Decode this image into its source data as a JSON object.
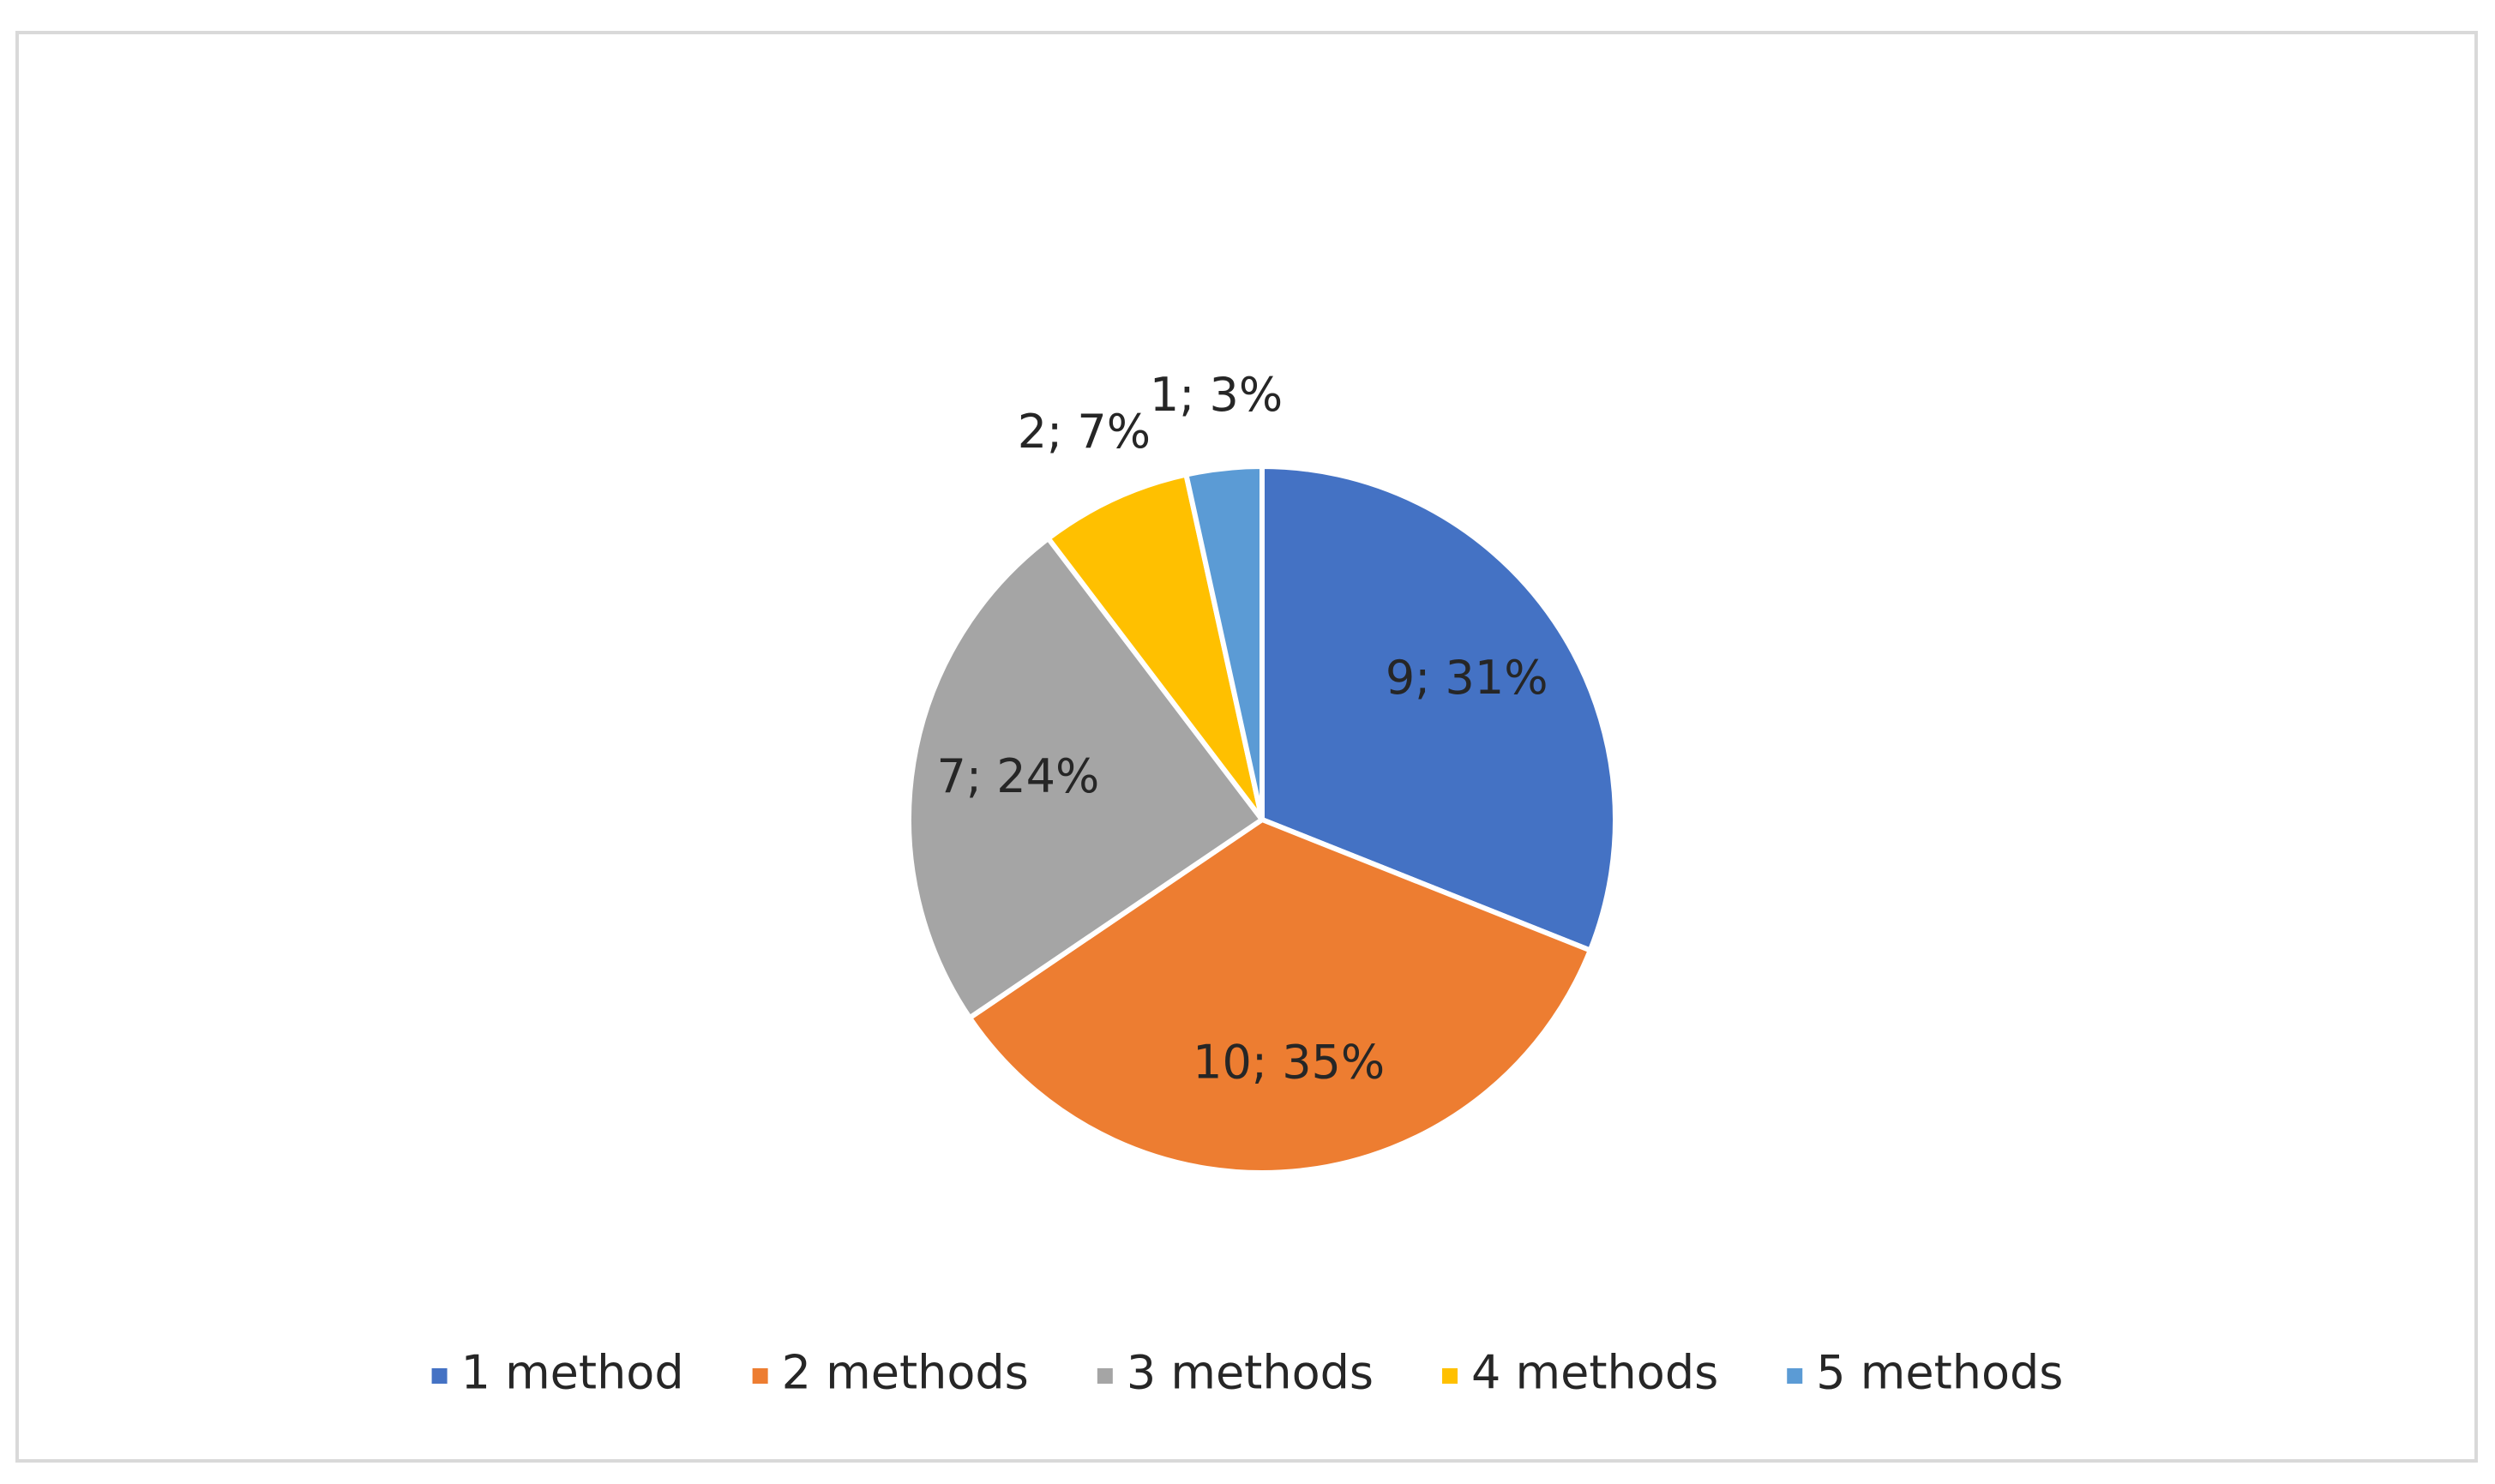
{
  "chart_data": {
    "type": "pie",
    "categories": [
      "1 method",
      "2 methods",
      "3 methods",
      "4 methods",
      "5 methods"
    ],
    "values": [
      9,
      10,
      7,
      2,
      1
    ],
    "value_labels": [
      "9; 31%",
      "10; 35%",
      "7; 24%",
      "2; 7%",
      "1; 3%"
    ],
    "colors": [
      "#4472c4",
      "#ed7d31",
      "#a5a5a5",
      "#ffc000",
      "#5b9bd5"
    ],
    "legend": "bottom"
  }
}
